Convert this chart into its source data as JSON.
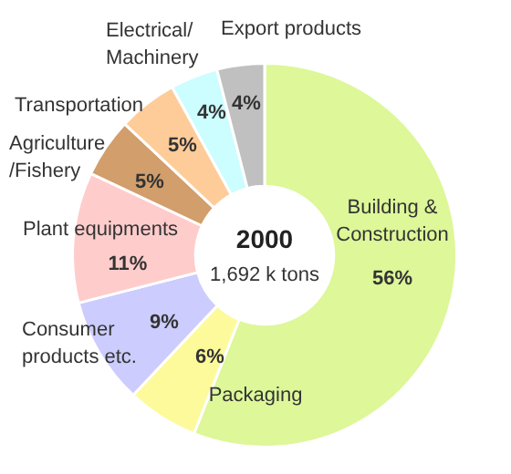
{
  "chart_data": {
    "type": "donut",
    "title": "2000",
    "subtitle": "1,692 k tons",
    "categories": [
      "Building & Construction",
      "Packaging",
      "Consumer products etc.",
      "Plant equipments",
      "Agriculture/Fishery",
      "Transportation",
      "Electrical/Machinery",
      "Export products"
    ],
    "values": [
      56,
      6,
      9,
      11,
      5,
      5,
      4,
      4
    ],
    "value_labels": [
      "56%",
      "6%",
      "9%",
      "11%",
      "5%",
      "5%",
      "4%",
      "4%"
    ],
    "colors": [
      "#ddf799",
      "#fdfa9b",
      "#ccccfe",
      "#ffcccc",
      "#d19e6c",
      "#fecc99",
      "#ccfdff",
      "#c0c0c0"
    ],
    "legend": false
  }
}
